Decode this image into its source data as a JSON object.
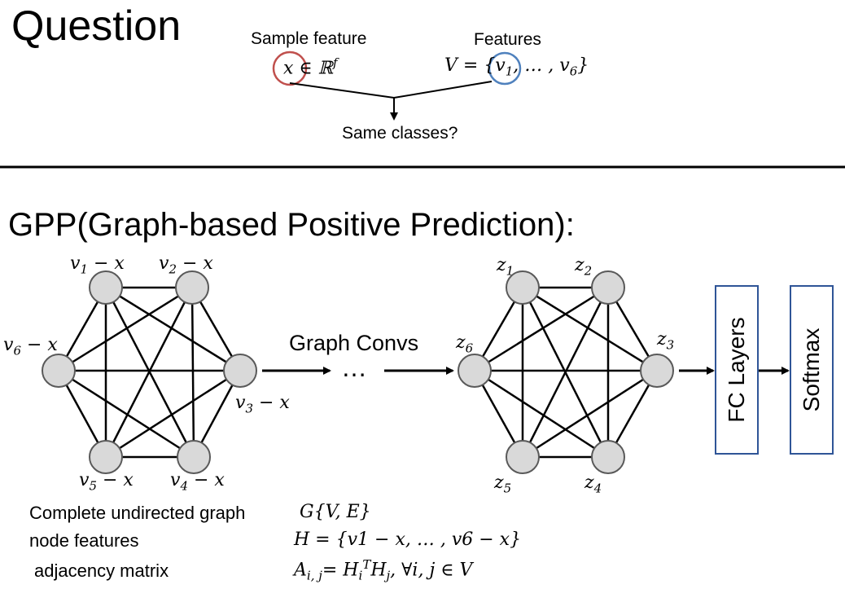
{
  "question": {
    "title": "Question",
    "sample_feature_label": "Sample feature",
    "sample_feature_math": "x ∈ ℝ",
    "sample_feature_sup": "f",
    "features_label": "Features",
    "features_math": "V = {v",
    "features_math_sub1": "1",
    "features_math_mid": ", … , v",
    "features_math_sub2": "6",
    "features_math_end": "}",
    "same_classes": "Same classes?"
  },
  "gpp": {
    "title": "GPP(Graph-based Positive Prediction):",
    "left_graph_labels": [
      {
        "main": "v",
        "sub": "1",
        "rest": " − x"
      },
      {
        "main": "v",
        "sub": "2",
        "rest": " − x"
      },
      {
        "main": "v",
        "sub": "3",
        "rest": " − x"
      },
      {
        "main": "v",
        "sub": "4",
        "rest": " − x"
      },
      {
        "main": "v",
        "sub": "5",
        "rest": " − x"
      },
      {
        "main": "v",
        "sub": "6",
        "rest": " − x"
      }
    ],
    "right_graph_labels": [
      {
        "main": "z",
        "sub": "1"
      },
      {
        "main": "z",
        "sub": "2"
      },
      {
        "main": "z",
        "sub": "3"
      },
      {
        "main": "z",
        "sub": "4"
      },
      {
        "main": "z",
        "sub": "5"
      },
      {
        "main": "z",
        "sub": "6"
      }
    ],
    "graph_convs": "Graph Convs",
    "ellipsis": "…",
    "fc_layers": "FC Layers",
    "softmax": "Softmax"
  },
  "definitions": {
    "row1_label": "Complete undirected graph",
    "row1_math": "G{V, E}",
    "row2_label": "node features",
    "row2_math": "H = {v1 − x, … , v6 − x}",
    "row3_label": "adjacency matrix",
    "row3_math_a": "A",
    "row3_math_a_sub": "i, j",
    "row3_math_b": "= H",
    "row3_math_b_sub": "i",
    "row3_math_b_sup": "T",
    "row3_math_c": "H",
    "row3_math_c_sub": "j",
    "row3_math_d": ", ∀i, j ∈ V"
  },
  "colors": {
    "node_fill": "#d9d9d9",
    "node_stroke": "#595959",
    "red_circle": "#c0504d",
    "blue_circle": "#4f81bd",
    "box_border": "#2f5597"
  }
}
